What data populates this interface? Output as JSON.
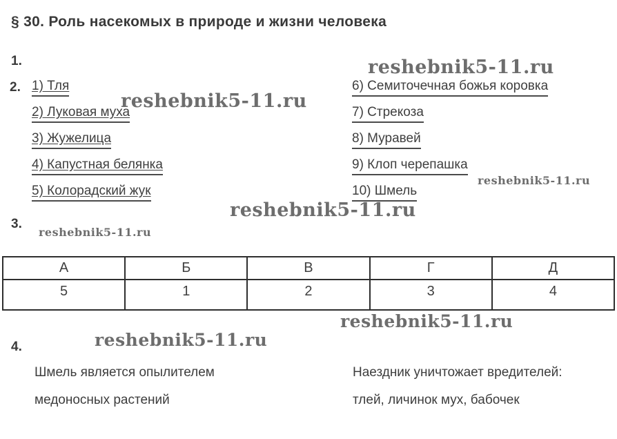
{
  "page": {
    "title": "§ 30. Роль насекомых в природе и жизни человека"
  },
  "watermark": {
    "text": "reshebnik5-11.ru"
  },
  "sections": {
    "s1": {
      "label": "1."
    },
    "s2": {
      "label": "2.",
      "left_items": [
        "1) Тля",
        "2) Луковая муха",
        "3) Жужелица",
        "4) Капустная белянка",
        "5) Колорадский жук"
      ],
      "right_items": [
        "6) Семиточечная божья коровка",
        "7) Стрекоза",
        "8) Муравей",
        "9) Клоп черепашка",
        "10) Шмель"
      ]
    },
    "s3": {
      "label": "3."
    },
    "s4": {
      "label": "4.",
      "left_lines": [
        "Шмель является опылителем",
        "медоносных растений"
      ],
      "right_lines": [
        "Наездник уничтожает вредителей:",
        "тлей, личинок мух, бабочек"
      ]
    }
  },
  "table": {
    "headers": [
      "А",
      "Б",
      "В",
      "Г",
      "Д"
    ],
    "values": [
      "5",
      "1",
      "2",
      "3",
      "4"
    ]
  },
  "colors": {
    "text": "#3d3d3d",
    "watermark": "#6d6d6d",
    "table_border": "#2e2e2e"
  }
}
